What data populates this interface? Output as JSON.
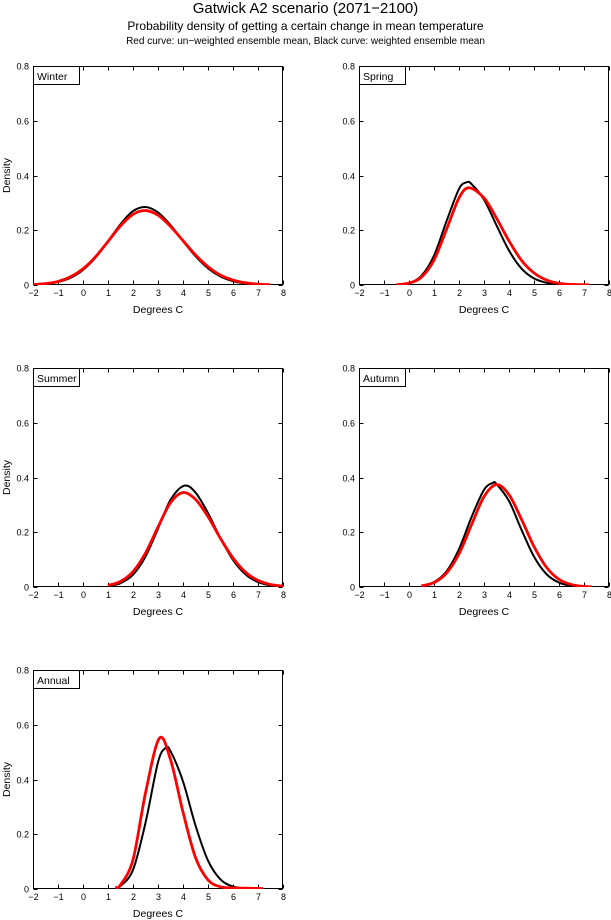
{
  "figure": {
    "title": "Gatwick A2 scenario (2071−2100)",
    "subtitle": "Probability density of getting a certain change in mean temperature",
    "legend_note": "Red curve: un−weighted ensemble mean, Black curve: weighted ensemble mean"
  },
  "colors": {
    "weighted_curve": "#000000",
    "unweighted_curve": "#ff0000",
    "axis": "#000000",
    "background": "#ffffff"
  },
  "chart_data": [
    {
      "type": "line",
      "title": "Winter",
      "xlabel": "Degrees C",
      "ylabel": "Density",
      "xlim": [
        -2,
        8
      ],
      "ylim": [
        0,
        0.8
      ],
      "xticks": [
        -2,
        -1,
        0,
        1,
        2,
        3,
        4,
        5,
        6,
        7,
        8
      ],
      "yticks": [
        0,
        0.2,
        0.4,
        0.6,
        0.8
      ],
      "grid": false,
      "legend_position": "none",
      "series": [
        {
          "name": "weighted ensemble mean",
          "color": "#000000",
          "line_width": 2,
          "x": [
            -2,
            -1.5,
            -1,
            -0.5,
            0,
            0.5,
            1,
            1.5,
            2,
            2.5,
            3,
            3.5,
            4,
            4.5,
            5,
            5.5,
            6,
            6.5,
            7,
            7.5
          ],
          "y": [
            0.001,
            0.004,
            0.011,
            0.026,
            0.055,
            0.1,
            0.16,
            0.222,
            0.27,
            0.285,
            0.265,
            0.219,
            0.161,
            0.105,
            0.061,
            0.031,
            0.014,
            0.006,
            0.002,
            0.001
          ]
        },
        {
          "name": "un-weighted ensemble mean",
          "color": "#ff0000",
          "line_width": 2.8,
          "x": [
            -2,
            -1.5,
            -1,
            -0.5,
            0,
            0.5,
            1,
            1.5,
            2,
            2.5,
            3,
            3.5,
            4,
            4.5,
            5,
            5.5,
            6,
            6.5,
            7,
            7.5
          ],
          "y": [
            0.002,
            0.005,
            0.013,
            0.03,
            0.059,
            0.103,
            0.159,
            0.216,
            0.258,
            0.272,
            0.255,
            0.214,
            0.162,
            0.11,
            0.067,
            0.036,
            0.018,
            0.008,
            0.003,
            0.001
          ]
        }
      ]
    },
    {
      "type": "line",
      "title": "Spring",
      "xlabel": "Degrees C",
      "ylabel": "",
      "xlim": [
        -2,
        8
      ],
      "ylim": [
        0,
        0.8
      ],
      "xticks": [
        -2,
        -1,
        0,
        1,
        2,
        3,
        4,
        5,
        6,
        7,
        8
      ],
      "yticks": [
        0,
        0.2,
        0.4,
        0.6,
        0.8
      ],
      "grid": false,
      "legend_position": "none",
      "series": [
        {
          "name": "weighted ensemble mean",
          "color": "#000000",
          "line_width": 2,
          "x": [
            -0.5,
            0,
            0.5,
            1,
            1.5,
            2,
            2.3,
            2.5,
            3,
            3.5,
            4,
            4.5,
            5,
            5.5,
            6,
            6.5,
            7
          ],
          "y": [
            0.001,
            0.007,
            0.034,
            0.107,
            0.233,
            0.351,
            0.375,
            0.369,
            0.312,
            0.218,
            0.126,
            0.06,
            0.024,
            0.008,
            0.002,
            0.001,
            0.0
          ]
        },
        {
          "name": "un-weighted ensemble mean",
          "color": "#ff0000",
          "line_width": 2.8,
          "x": [
            -0.5,
            0,
            0.5,
            1,
            1.5,
            2,
            2.4,
            3,
            3.5,
            4,
            4.5,
            5,
            5.5,
            6,
            6.5,
            7,
            7.2
          ],
          "y": [
            0.001,
            0.007,
            0.029,
            0.091,
            0.203,
            0.318,
            0.355,
            0.318,
            0.244,
            0.161,
            0.09,
            0.044,
            0.018,
            0.006,
            0.002,
            0.001,
            0.001
          ]
        }
      ]
    },
    {
      "type": "line",
      "title": "Summer",
      "xlabel": "Degrees C",
      "ylabel": "Density",
      "xlim": [
        -2,
        8
      ],
      "ylim": [
        0,
        0.8
      ],
      "xticks": [
        -2,
        -1,
        0,
        1,
        2,
        3,
        4,
        5,
        6,
        7,
        8
      ],
      "yticks": [
        0,
        0.2,
        0.4,
        0.6,
        0.8
      ],
      "grid": false,
      "legend_position": "none",
      "series": [
        {
          "name": "weighted ensemble mean",
          "color": "#000000",
          "line_width": 2,
          "x": [
            1,
            1.5,
            2,
            2.5,
            3,
            3.5,
            4.05,
            4.5,
            5,
            5.5,
            6,
            6.5,
            7,
            7.5,
            8
          ],
          "y": [
            0.004,
            0.014,
            0.045,
            0.111,
            0.213,
            0.318,
            0.37,
            0.345,
            0.27,
            0.178,
            0.099,
            0.046,
            0.018,
            0.006,
            0.002
          ]
        },
        {
          "name": "un-weighted ensemble mean",
          "color": "#ff0000",
          "line_width": 2.8,
          "x": [
            1,
            1.5,
            2,
            2.5,
            3,
            3.5,
            4,
            4.5,
            5,
            5.5,
            6,
            6.5,
            7,
            7.5,
            8
          ],
          "y": [
            0.006,
            0.02,
            0.056,
            0.124,
            0.219,
            0.308,
            0.345,
            0.32,
            0.257,
            0.177,
            0.106,
            0.054,
            0.024,
            0.009,
            0.003
          ]
        }
      ]
    },
    {
      "type": "line",
      "title": "Autumn",
      "xlabel": "Degrees C",
      "ylabel": "",
      "xlim": [
        -2,
        8
      ],
      "ylim": [
        0,
        0.8
      ],
      "xticks": [
        -2,
        -1,
        0,
        1,
        2,
        3,
        4,
        5,
        6,
        7,
        8
      ],
      "yticks": [
        0,
        0.2,
        0.4,
        0.6,
        0.8
      ],
      "grid": false,
      "legend_position": "none",
      "series": [
        {
          "name": "weighted ensemble mean",
          "color": "#000000",
          "line_width": 2,
          "x": [
            0.5,
            1,
            1.5,
            2,
            2.5,
            3,
            3.35,
            3.5,
            4,
            4.5,
            5,
            5.5,
            6,
            6.5,
            7
          ],
          "y": [
            0.004,
            0.018,
            0.057,
            0.138,
            0.255,
            0.355,
            0.38,
            0.376,
            0.314,
            0.209,
            0.111,
            0.047,
            0.016,
            0.004,
            0.001
          ]
        },
        {
          "name": "un-weighted ensemble mean",
          "color": "#ff0000",
          "line_width": 2.8,
          "x": [
            0.5,
            1,
            1.5,
            2,
            2.5,
            3,
            3.5,
            4,
            4.5,
            5,
            5.5,
            6,
            6.5,
            7,
            7.3
          ],
          "y": [
            0.004,
            0.016,
            0.051,
            0.121,
            0.227,
            0.33,
            0.374,
            0.337,
            0.247,
            0.148,
            0.072,
            0.028,
            0.009,
            0.002,
            0.001
          ]
        }
      ]
    },
    {
      "type": "line",
      "title": "Annual",
      "xlabel": "Degrees C",
      "ylabel": "Density",
      "xlim": [
        -2,
        8
      ],
      "ylim": [
        0,
        0.8
      ],
      "xticks": [
        -2,
        -1,
        0,
        1,
        2,
        3,
        4,
        5,
        6,
        7,
        8
      ],
      "yticks": [
        0,
        0.2,
        0.4,
        0.6,
        0.8
      ],
      "grid": false,
      "legend_position": "none",
      "series": [
        {
          "name": "weighted ensemble mean",
          "color": "#000000",
          "line_width": 2,
          "x": [
            1.3,
            1.5,
            2,
            2.5,
            3,
            3.3,
            3.5,
            4,
            4.5,
            5,
            5.5,
            6,
            6.5
          ],
          "y": [
            0.004,
            0.011,
            0.07,
            0.242,
            0.463,
            0.515,
            0.504,
            0.393,
            0.232,
            0.104,
            0.035,
            0.009,
            0.002
          ]
        },
        {
          "name": "un-weighted ensemble mean",
          "color": "#ff0000",
          "line_width": 2.8,
          "x": [
            1.3,
            1.5,
            2,
            2.5,
            3.05,
            3.5,
            4,
            4.5,
            5,
            5.5,
            6,
            6.5,
            7,
            7.2
          ],
          "y": [
            0.005,
            0.015,
            0.107,
            0.351,
            0.55,
            0.473,
            0.281,
            0.115,
            0.033,
            0.008,
            0.004,
            0.003,
            0.002,
            0.001
          ]
        }
      ]
    }
  ]
}
